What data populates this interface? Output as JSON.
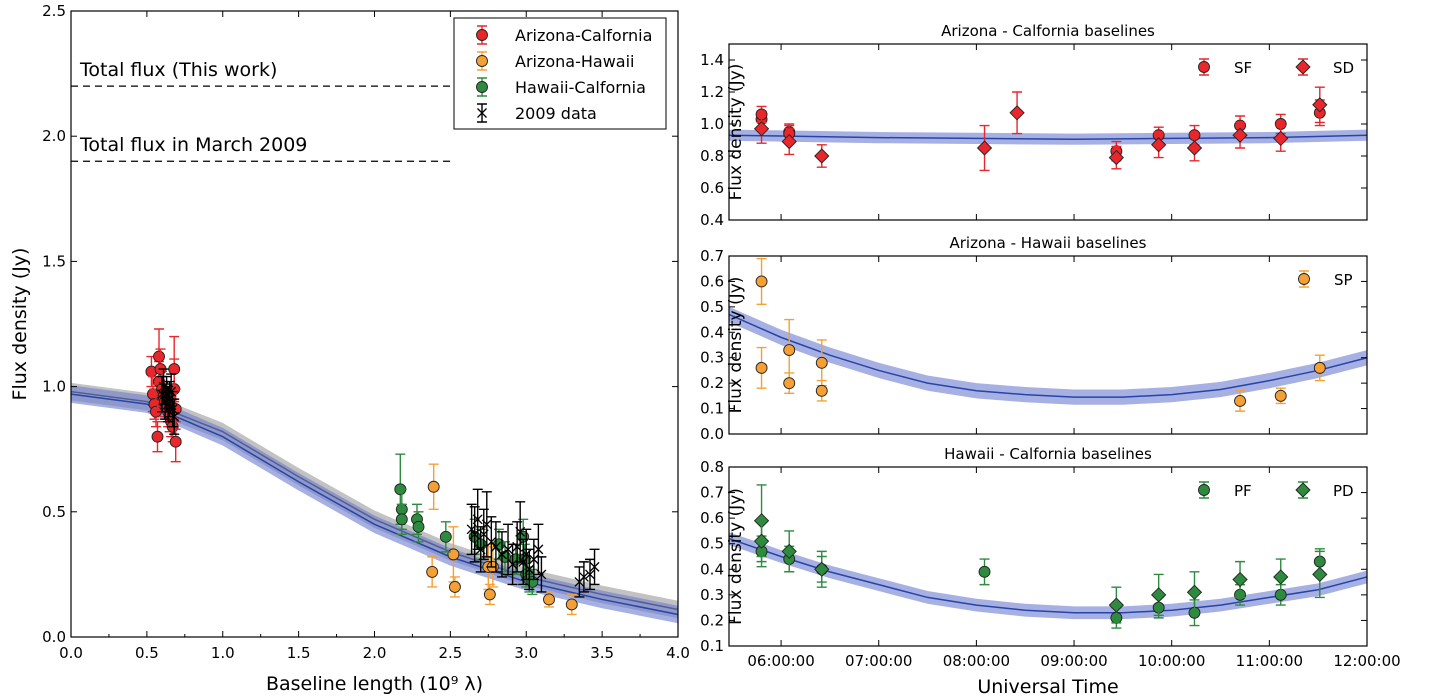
{
  "chart_data": [
    {
      "type": "scatter",
      "xlabel": "Baseline length (10⁹ λ)",
      "ylabel": "Flux density (Jy)",
      "xlim": [
        0.0,
        4.0
      ],
      "ylim": [
        0.0,
        2.5
      ],
      "xticks": [
        "0.0",
        "0.5",
        "1.0",
        "1.5",
        "2.0",
        "2.5",
        "3.0",
        "3.5",
        "4.0"
      ],
      "yticks": [
        "0.0",
        "0.5",
        "1.0",
        "1.5",
        "2.0",
        "2.5"
      ],
      "annotations": [
        {
          "text": "Total flux (This work)",
          "y": 2.2
        },
        {
          "text": "Total flux in March 2009",
          "y": 1.9
        }
      ],
      "legend": {
        "position": "top-right",
        "entries": [
          "Arizona-Calfornia",
          "Arizona-Hawaii",
          "Hawaii-Calfornia",
          "2009 data"
        ]
      },
      "series": [
        {
          "name": "Arizona-Calfornia",
          "color": "#e8262b",
          "marker": "circle",
          "x": [
            0.53,
            0.54,
            0.55,
            0.56,
            0.57,
            0.58,
            0.58,
            0.59,
            0.6,
            0.61,
            0.62,
            0.63,
            0.64,
            0.65,
            0.66,
            0.67,
            0.68,
            0.68,
            0.69,
            0.69
          ],
          "y": [
            1.06,
            0.97,
            0.93,
            0.9,
            0.8,
            1.02,
            1.12,
            1.07,
            0.99,
            0.96,
            0.94,
            0.92,
            0.9,
            0.88,
            0.86,
            0.84,
            0.99,
            1.07,
            0.91,
            0.78
          ],
          "err": [
            0.06,
            0.07,
            0.06,
            0.06,
            0.06,
            0.08,
            0.11,
            0.08,
            0.07,
            0.06,
            0.06,
            0.06,
            0.06,
            0.06,
            0.06,
            0.06,
            0.12,
            0.13,
            0.08,
            0.08
          ]
        },
        {
          "name": "Arizona-Hawaii",
          "color": "#f5a034",
          "marker": "circle",
          "x": [
            2.38,
            2.39,
            2.52,
            2.53,
            2.75,
            2.76,
            2.78,
            3.15,
            3.3
          ],
          "y": [
            0.26,
            0.6,
            0.33,
            0.2,
            0.28,
            0.17,
            0.28,
            0.15,
            0.13
          ],
          "err": [
            0.06,
            0.09,
            0.11,
            0.04,
            0.09,
            0.04,
            0.08,
            0.03,
            0.04
          ]
        },
        {
          "name": "Hawaii-Calfornia",
          "color": "#2e8a3e",
          "marker": "circle",
          "x": [
            2.17,
            2.18,
            2.18,
            2.28,
            2.29,
            2.47,
            2.66,
            2.7,
            2.82,
            2.86,
            2.93,
            2.98,
            2.99,
            3.0,
            3.02,
            3.04
          ],
          "y": [
            0.59,
            0.51,
            0.47,
            0.47,
            0.44,
            0.4,
            0.4,
            0.37,
            0.37,
            0.32,
            0.31,
            0.4,
            0.31,
            0.25,
            0.23,
            0.22
          ],
          "err": [
            0.14,
            0.08,
            0.06,
            0.06,
            0.06,
            0.06,
            0.07,
            0.06,
            0.06,
            0.06,
            0.06,
            0.07,
            0.06,
            0.05,
            0.05,
            0.05
          ]
        },
        {
          "name": "2009 data",
          "color": "#000000",
          "marker": "x",
          "x": [
            0.6,
            0.61,
            0.62,
            0.63,
            0.64,
            0.65,
            0.66,
            0.67,
            0.68,
            2.64,
            2.66,
            2.68,
            2.7,
            2.72,
            2.74,
            2.77,
            2.8,
            2.84,
            2.88,
            2.91,
            2.94,
            2.96,
            2.98,
            3.0,
            3.02,
            3.05,
            3.08,
            3.1,
            3.35,
            3.38,
            3.42,
            3.45
          ],
          "y": [
            0.97,
            1.0,
            0.94,
            0.97,
            0.93,
            0.95,
            0.98,
            0.91,
            0.88,
            0.43,
            0.41,
            0.47,
            0.35,
            0.41,
            0.45,
            0.38,
            0.36,
            0.33,
            0.35,
            0.29,
            0.36,
            0.42,
            0.3,
            0.33,
            0.27,
            0.31,
            0.35,
            0.25,
            0.22,
            0.24,
            0.25,
            0.28
          ],
          "err": [
            0.07,
            0.07,
            0.07,
            0.07,
            0.07,
            0.07,
            0.07,
            0.07,
            0.07,
            0.1,
            0.11,
            0.12,
            0.09,
            0.1,
            0.13,
            0.1,
            0.1,
            0.09,
            0.1,
            0.08,
            0.1,
            0.12,
            0.09,
            0.1,
            0.08,
            0.08,
            0.1,
            0.07,
            0.06,
            0.06,
            0.06,
            0.07
          ]
        }
      ],
      "model_gray": {
        "color": "#333333",
        "band_color": "#9a9a9a",
        "x": [
          0.0,
          0.5,
          1.0,
          1.5,
          2.0,
          2.5,
          3.0,
          3.5,
          4.0
        ],
        "y": [
          0.98,
          0.94,
          0.82,
          0.64,
          0.47,
          0.34,
          0.24,
          0.17,
          0.11
        ],
        "band": 0.035
      },
      "model_blue": {
        "color": "#2745a8",
        "band_color": "#6b7bd0",
        "x": [
          0.0,
          0.5,
          1.0,
          1.5,
          2.0,
          2.5,
          3.0,
          3.5,
          4.0
        ],
        "y": [
          0.97,
          0.93,
          0.8,
          0.62,
          0.45,
          0.32,
          0.22,
          0.15,
          0.09
        ],
        "band": 0.035
      }
    },
    {
      "type": "scatter",
      "title": "Arizona - Calfornia baselines",
      "xlabel": "",
      "ylabel": "Flux density (Jy)",
      "xlim": [
        "05:28",
        "12:00"
      ],
      "ylim": [
        0.4,
        1.5
      ],
      "yticks": [
        "0.4",
        "0.6",
        "0.8",
        "1.0",
        "1.2",
        "1.4"
      ],
      "legend": {
        "position": "top-right",
        "entries": [
          "SF",
          "SD"
        ]
      },
      "model": {
        "color": "#2745a8",
        "band_color": "#6b7bd0",
        "band": 0.035,
        "x": [
          "05:28",
          "06:00",
          "07:00",
          "08:00",
          "09:00",
          "10:00",
          "11:00",
          "12:00"
        ],
        "y": [
          0.93,
          0.925,
          0.915,
          0.91,
          0.905,
          0.91,
          0.915,
          0.93
        ]
      },
      "series": [
        {
          "name": "SF",
          "color": "#e8262b",
          "marker": "circle",
          "x": [
            "05:48",
            "05:48",
            "06:05",
            "06:05",
            "09:26",
            "09:52",
            "10:14",
            "10:42",
            "11:07",
            "11:31"
          ],
          "y": [
            1.03,
            1.06,
            0.95,
            0.94,
            0.83,
            0.93,
            0.93,
            0.99,
            1.0,
            1.07
          ],
          "err": [
            0.05,
            0.05,
            0.05,
            0.05,
            0.06,
            0.05,
            0.06,
            0.06,
            0.06,
            0.08
          ]
        },
        {
          "name": "SD",
          "color": "#e8262b",
          "marker": "diamond",
          "x": [
            "05:48",
            "06:05",
            "06:25",
            "08:05",
            "08:25",
            "09:26",
            "09:52",
            "10:14",
            "10:42",
            "11:07",
            "11:31"
          ],
          "y": [
            0.97,
            0.89,
            0.8,
            0.85,
            1.07,
            0.79,
            0.87,
            0.85,
            0.93,
            0.91,
            1.12
          ],
          "err": [
            0.09,
            0.08,
            0.07,
            0.14,
            0.13,
            0.07,
            0.08,
            0.08,
            0.08,
            0.08,
            0.11
          ]
        }
      ]
    },
    {
      "type": "scatter",
      "title": "Arizona - Hawaii baselines",
      "xlabel": "",
      "ylabel": "Flux density (Jy)",
      "xlim": [
        "05:28",
        "12:00"
      ],
      "ylim": [
        0.0,
        0.7
      ],
      "yticks": [
        "0.0",
        "0.1",
        "0.2",
        "0.3",
        "0.4",
        "0.5",
        "0.6",
        "0.7"
      ],
      "legend": {
        "position": "top-right",
        "entries": [
          "SP"
        ]
      },
      "model": {
        "color": "#2745a8",
        "band_color": "#6b7bd0",
        "band": 0.03,
        "x": [
          "05:28",
          "06:00",
          "06:30",
          "07:00",
          "07:30",
          "08:00",
          "08:30",
          "09:00",
          "09:30",
          "10:00",
          "10:30",
          "11:00",
          "11:30",
          "12:00"
        ],
        "y": [
          0.47,
          0.38,
          0.31,
          0.25,
          0.2,
          0.17,
          0.155,
          0.145,
          0.145,
          0.155,
          0.175,
          0.21,
          0.25,
          0.3
        ]
      },
      "series": [
        {
          "name": "SP",
          "color": "#f5a034",
          "marker": "circle",
          "x": [
            "05:48",
            "05:48",
            "06:05",
            "06:05",
            "06:25",
            "06:25",
            "10:42",
            "11:07",
            "11:31"
          ],
          "y": [
            0.6,
            0.26,
            0.33,
            0.2,
            0.28,
            0.17,
            0.13,
            0.15,
            0.26
          ],
          "err": [
            0.09,
            0.08,
            0.12,
            0.04,
            0.09,
            0.04,
            0.04,
            0.03,
            0.05
          ]
        }
      ]
    },
    {
      "type": "scatter",
      "title": "Hawaii - Calfornia baselines",
      "xlabel": "Universal Time",
      "ylabel": "Flux density (Jy)",
      "xlim": [
        "05:28",
        "12:00"
      ],
      "ylim": [
        0.1,
        0.8
      ],
      "xticks": [
        "06:00:00",
        "07:00:00",
        "08:00:00",
        "09:00:00",
        "10:00:00",
        "11:00:00",
        "12:00:00"
      ],
      "yticks": [
        "0.1",
        "0.2",
        "0.3",
        "0.4",
        "0.5",
        "0.6",
        "0.7",
        "0.8"
      ],
      "legend": {
        "position": "top-right",
        "entries": [
          "PF",
          "PD"
        ]
      },
      "model": {
        "color": "#2745a8",
        "band_color": "#6b7bd0",
        "band": 0.025,
        "x": [
          "05:28",
          "06:00",
          "06:30",
          "07:00",
          "07:30",
          "08:00",
          "08:30",
          "09:00",
          "09:30",
          "10:00",
          "10:30",
          "11:00",
          "11:30",
          "12:00"
        ],
        "y": [
          0.52,
          0.45,
          0.39,
          0.34,
          0.29,
          0.26,
          0.24,
          0.23,
          0.23,
          0.24,
          0.26,
          0.29,
          0.32,
          0.37
        ]
      },
      "series": [
        {
          "name": "PF",
          "color": "#2e8a3e",
          "marker": "circle",
          "x": [
            "05:48",
            "06:05",
            "06:25",
            "08:05",
            "09:26",
            "09:52",
            "10:14",
            "10:42",
            "11:07",
            "11:31"
          ],
          "y": [
            0.47,
            0.44,
            0.4,
            0.39,
            0.21,
            0.25,
            0.23,
            0.3,
            0.3,
            0.43
          ],
          "err": [
            0.06,
            0.05,
            0.05,
            0.05,
            0.04,
            0.04,
            0.05,
            0.04,
            0.04,
            0.05
          ]
        },
        {
          "name": "PD",
          "color": "#2e8a3e",
          "marker": "diamond",
          "x": [
            "05:48",
            "05:48",
            "06:05",
            "06:25",
            "09:26",
            "09:52",
            "10:14",
            "10:42",
            "11:07",
            "11:31"
          ],
          "y": [
            0.59,
            0.51,
            0.47,
            0.4,
            0.26,
            0.3,
            0.31,
            0.36,
            0.37,
            0.38
          ],
          "err": [
            0.14,
            0.08,
            0.08,
            0.07,
            0.07,
            0.08,
            0.08,
            0.07,
            0.07,
            0.09
          ]
        }
      ]
    }
  ]
}
